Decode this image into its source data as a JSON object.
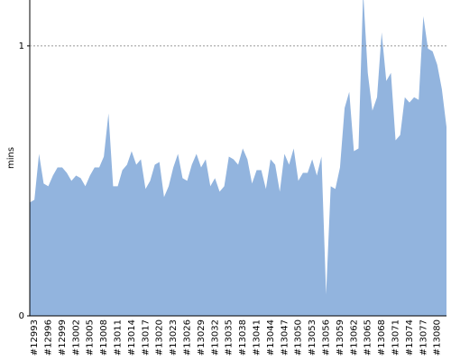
{
  "chart_data": {
    "type": "area",
    "y_label": "mins",
    "color": "#92b4de",
    "ylim": [
      0,
      1.17
    ],
    "yticks": [
      0,
      1
    ],
    "grid": true,
    "categories": [
      null,
      "#12993",
      null,
      null,
      "#12996",
      null,
      null,
      "#12999",
      null,
      null,
      "#13002",
      null,
      null,
      "#13005",
      null,
      null,
      "#13008",
      null,
      null,
      "#13011",
      null,
      null,
      "#13014",
      null,
      null,
      "#13017",
      null,
      null,
      "#13020",
      null,
      null,
      "#13023",
      null,
      null,
      "#13026",
      null,
      null,
      "#13029",
      null,
      null,
      "#13032",
      null,
      null,
      "#13035",
      null,
      null,
      "#13038",
      null,
      null,
      "#13041",
      null,
      null,
      "#13044",
      null,
      null,
      "#13047",
      null,
      null,
      "#13050",
      null,
      null,
      "#13053",
      null,
      null,
      "#13056",
      null,
      null,
      "#13059",
      null,
      null,
      "#13062",
      null,
      null,
      "#13065",
      null,
      null,
      "#13068",
      null,
      null,
      "#13071",
      null,
      null,
      "#13074",
      null,
      null,
      "#13077",
      null,
      null,
      "#13080",
      null,
      null
    ],
    "values": [
      0.42,
      0.43,
      0.6,
      0.49,
      0.48,
      0.52,
      0.55,
      0.55,
      0.53,
      0.5,
      0.52,
      0.51,
      0.48,
      0.52,
      0.55,
      0.55,
      0.59,
      0.75,
      0.48,
      0.48,
      0.54,
      0.56,
      0.61,
      0.56,
      0.58,
      0.47,
      0.5,
      0.56,
      0.57,
      0.44,
      0.48,
      0.55,
      0.6,
      0.51,
      0.5,
      0.56,
      0.6,
      0.55,
      0.58,
      0.48,
      0.51,
      0.46,
      0.48,
      0.59,
      0.58,
      0.56,
      0.62,
      0.58,
      0.49,
      0.54,
      0.54,
      0.47,
      0.58,
      0.56,
      0.46,
      0.6,
      0.56,
      0.62,
      0.5,
      0.53,
      0.53,
      0.58,
      0.52,
      0.59,
      0.08,
      0.48,
      0.47,
      0.55,
      0.77,
      0.83,
      0.61,
      0.62,
      1.2,
      0.9,
      0.76,
      0.81,
      1.05,
      0.87,
      0.9,
      0.65,
      0.67,
      0.81,
      0.79,
      0.81,
      0.8,
      1.11,
      0.99,
      0.98,
      0.93,
      0.84,
      0.7
    ]
  }
}
